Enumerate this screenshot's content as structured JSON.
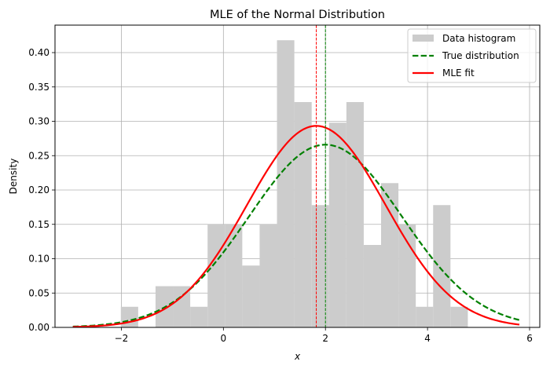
{
  "chart_data": {
    "type": "histogram+line",
    "title": "MLE of the Normal Distribution",
    "xlabel": "x",
    "ylabel": "Density",
    "xlim": [
      -3.3,
      6.2
    ],
    "ylim": [
      0,
      0.44
    ],
    "xticks": [
      -2,
      0,
      2,
      4,
      6
    ],
    "xtick_labels": [
      "−2",
      "0",
      "2",
      "4",
      "6"
    ],
    "yticks": [
      0.0,
      0.05,
      0.1,
      0.15,
      0.2,
      0.25,
      0.3,
      0.35,
      0.4
    ],
    "ytick_labels": [
      "0.00",
      "0.05",
      "0.10",
      "0.15",
      "0.20",
      "0.25",
      "0.30",
      "0.35",
      "0.40"
    ],
    "grid": true,
    "legend_position": "top-right",
    "histogram": {
      "name": "Data histogram",
      "color": "#cccccc",
      "bin_edges": [
        -2.01,
        -1.67,
        -1.33,
        -0.99,
        -0.65,
        -0.31,
        0.03,
        0.37,
        0.71,
        1.05,
        1.39,
        1.73,
        2.07,
        2.41,
        2.75,
        3.09,
        3.43,
        3.77,
        4.11,
        4.45,
        4.79
      ],
      "densities": [
        0.03,
        0.0,
        0.06,
        0.06,
        0.03,
        0.15,
        0.15,
        0.09,
        0.15,
        0.418,
        0.328,
        0.178,
        0.298,
        0.328,
        0.12,
        0.21,
        0.15,
        0.03,
        0.178,
        0.03
      ]
    },
    "series": [
      {
        "name": "True distribution",
        "dist": "normal",
        "mu": 2.0,
        "sigma": 1.5,
        "x_range": [
          -2.95,
          5.8
        ],
        "color": "#008000",
        "dashed": true
      },
      {
        "name": "MLE fit",
        "dist": "normal",
        "mu": 1.82,
        "sigma": 1.36,
        "x_range": [
          -2.95,
          5.8
        ],
        "color": "#ff0000",
        "dashed": false
      }
    ],
    "vlines": [
      {
        "x": 1.82,
        "color": "#ff0000"
      },
      {
        "x": 2.0,
        "color": "#008000"
      }
    ]
  }
}
